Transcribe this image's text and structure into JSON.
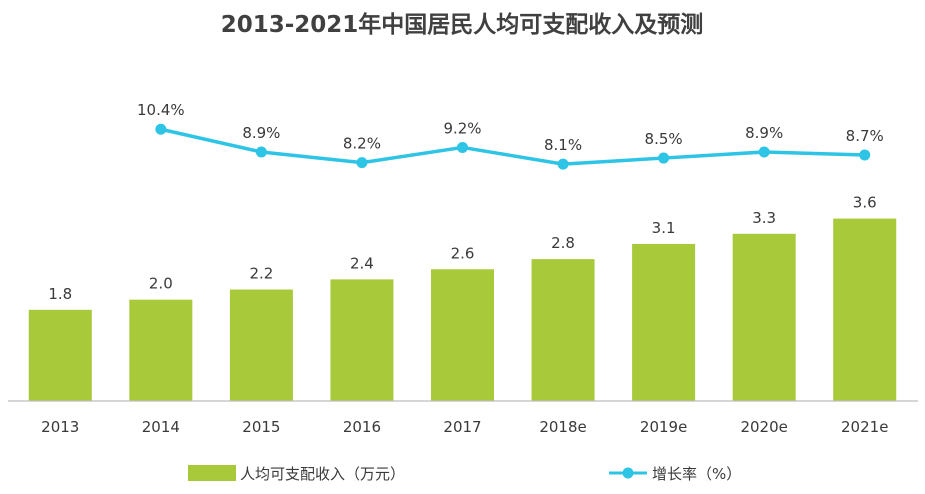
{
  "chart_data": {
    "type": "bar",
    "title": "2013-2021年中国居民人均可支配收入及预测",
    "categories": [
      "2013",
      "2014",
      "2015",
      "2016",
      "2017",
      "2018e",
      "2019e",
      "2020e",
      "2021e"
    ],
    "series": [
      {
        "name": "人均可支配收入（万元）",
        "type": "bar",
        "color": "#a7c93a",
        "values": [
          1.8,
          2.0,
          2.2,
          2.4,
          2.6,
          2.8,
          3.1,
          3.3,
          3.6
        ],
        "labels": [
          "1.8",
          "2.0",
          "2.2",
          "2.4",
          "2.6",
          "2.8",
          "3.1",
          "3.3",
          "3.6"
        ]
      },
      {
        "name": "增长率（%）",
        "type": "line",
        "color": "#2ec4e6",
        "values": [
          null,
          10.4,
          8.9,
          8.2,
          9.2,
          8.1,
          8.5,
          8.9,
          8.7
        ],
        "labels": [
          "",
          "10.4%",
          "8.9%",
          "8.2%",
          "9.2%",
          "8.1%",
          "8.5%",
          "8.9%",
          "8.7%"
        ]
      }
    ],
    "bar_ylim": [
      0,
      4.5
    ],
    "line_ylim": [
      0,
      11.8
    ],
    "grid": false,
    "legend_position": "bottom"
  }
}
